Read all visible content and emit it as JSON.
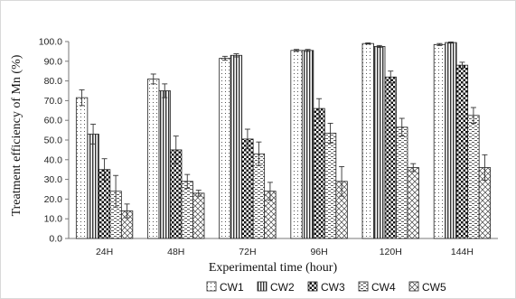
{
  "chart_data": {
    "type": "bar",
    "title": "",
    "xlabel": "Experimental time (hour)",
    "ylabel": "Treatment efficiency of Mn  (%)",
    "categories": [
      "24H",
      "48H",
      "72H",
      "96H",
      "120H",
      "144H"
    ],
    "ylim": [
      0,
      100
    ],
    "yticks": [
      "0.0",
      "10.0",
      "20.0",
      "30.0",
      "40.0",
      "50.0",
      "60.0",
      "70.0",
      "80.0",
      "90.0",
      "100.0"
    ],
    "grid": false,
    "legend_position": "bottom",
    "series": [
      {
        "name": "CW1",
        "pattern": "dots",
        "values": [
          71.5,
          81.0,
          91.5,
          95.5,
          99.0,
          98.5
        ],
        "errors": [
          4.0,
          2.5,
          1.0,
          0.5,
          0.3,
          0.5
        ]
      },
      {
        "name": "CW2",
        "pattern": "vertical-stripes",
        "values": [
          53.0,
          75.0,
          93.0,
          95.5,
          97.5,
          99.5
        ],
        "errors": [
          5.0,
          3.5,
          0.8,
          0.5,
          0.5,
          0.3
        ]
      },
      {
        "name": "CW3",
        "pattern": "checker",
        "values": [
          35.0,
          45.0,
          50.5,
          66.0,
          82.0,
          88.0
        ],
        "errors": [
          5.5,
          7.0,
          5.0,
          5.0,
          3.0,
          1.5
        ]
      },
      {
        "name": "CW4",
        "pattern": "horizontal-dashes",
        "values": [
          24.0,
          29.0,
          43.0,
          53.5,
          56.5,
          62.5
        ],
        "errors": [
          8.0,
          3.5,
          6.0,
          5.0,
          4.5,
          4.0
        ]
      },
      {
        "name": "CW5",
        "pattern": "diagonal-cross",
        "values": [
          14.0,
          23.0,
          24.0,
          29.0,
          36.0,
          36.0
        ],
        "errors": [
          3.5,
          1.5,
          4.5,
          7.5,
          2.0,
          6.5
        ]
      }
    ]
  }
}
